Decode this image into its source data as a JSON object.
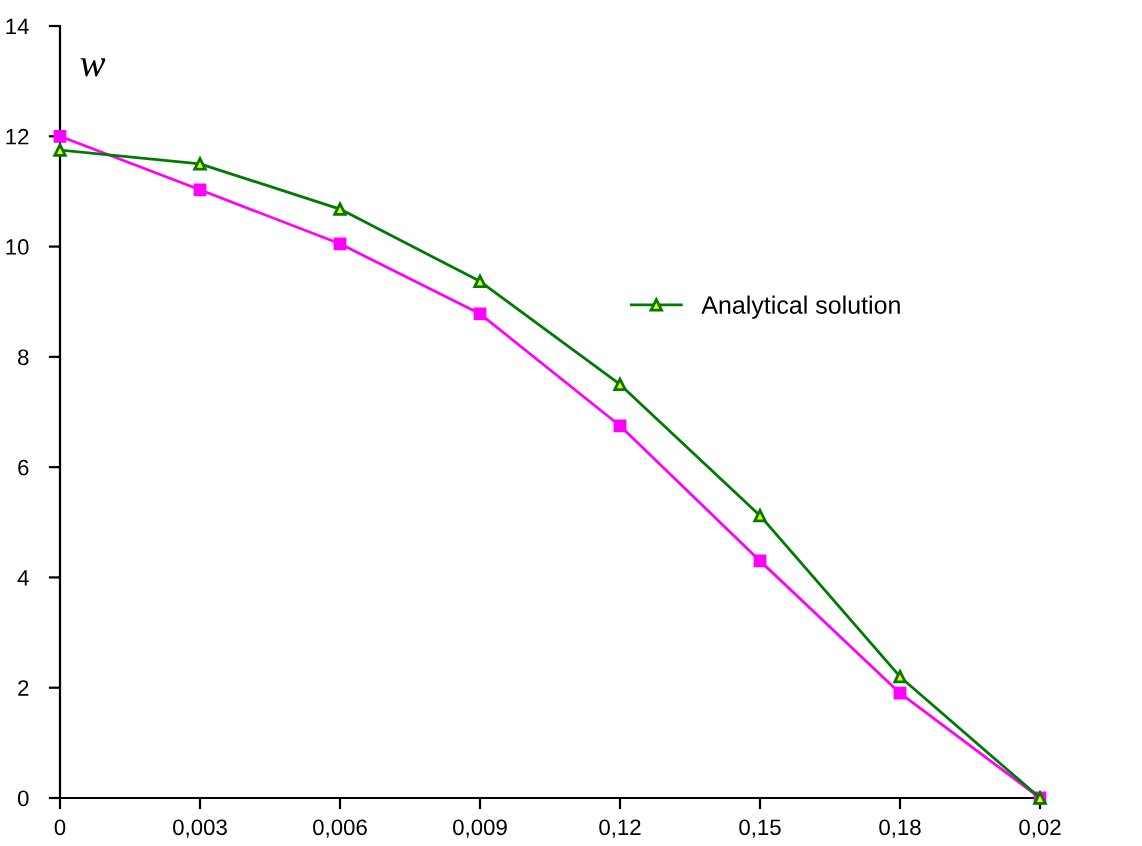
{
  "chart_data": {
    "type": "line",
    "ylabel": "w",
    "categories": [
      "0",
      "0,003",
      "0,006",
      "0,009",
      "0,12",
      "0,15",
      "0,18",
      "0,02"
    ],
    "series": [
      {
        "color": "#ff00ff",
        "marker": "square",
        "values": [
          12,
          11.03,
          10.05,
          8.78,
          6.75,
          4.3,
          1.9,
          0
        ]
      },
      {
        "name": "Analytical solution",
        "color": "#007a00",
        "marker": "triangle",
        "values": [
          11.75,
          11.5,
          10.68,
          9.37,
          7.5,
          5.12,
          2.2,
          0
        ]
      }
    ],
    "ylim": [
      0,
      14
    ],
    "yticks": [
      0,
      2,
      4,
      6,
      8,
      10,
      12,
      14
    ],
    "grid": false,
    "legend": "right"
  }
}
